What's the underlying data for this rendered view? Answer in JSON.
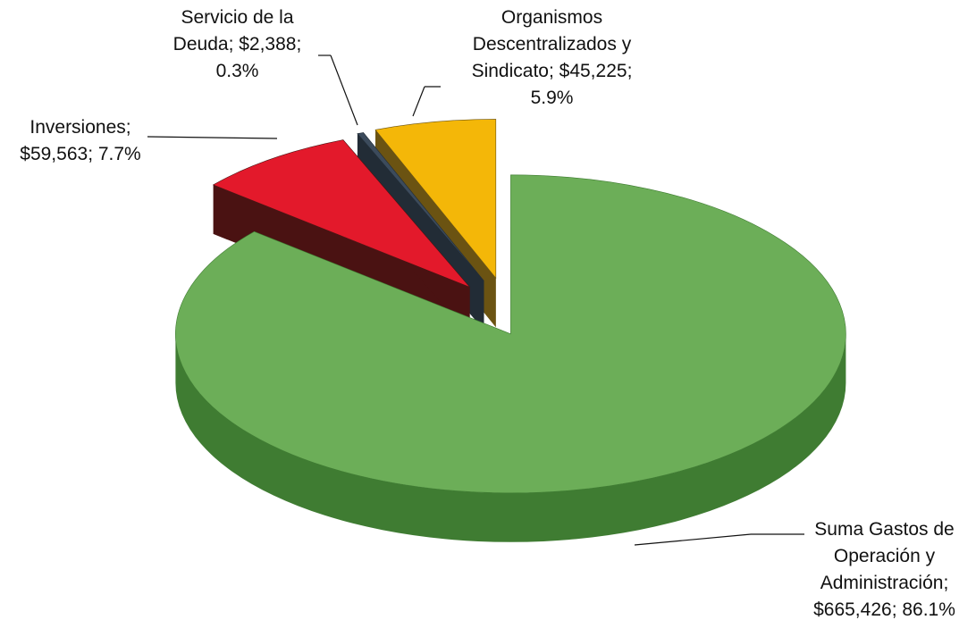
{
  "chart_data": {
    "type": "pie3d",
    "categories": [
      "Suma Gastos de Operación y Administración",
      "Inversiones",
      "Servicio de la Deuda",
      "Organismos Descentralizados y Sindicato"
    ],
    "values": [
      665426,
      59563,
      2388,
      45225
    ],
    "value_labels": [
      "$665,426",
      "$59,563",
      "$2,388",
      "$45,225"
    ],
    "percents": [
      86.1,
      7.7,
      0.3,
      5.9
    ],
    "percent_labels": [
      "86.1%",
      "7.7%",
      "0.3%",
      "5.9%"
    ],
    "label_separator": "; ",
    "colors": [
      "#6cae58",
      "#e3192b",
      "#3c4b5c",
      "#f4b708"
    ],
    "side_colors": [
      "#3f7c32",
      "#4a1212",
      "#222c36",
      "#6b5312"
    ]
  }
}
